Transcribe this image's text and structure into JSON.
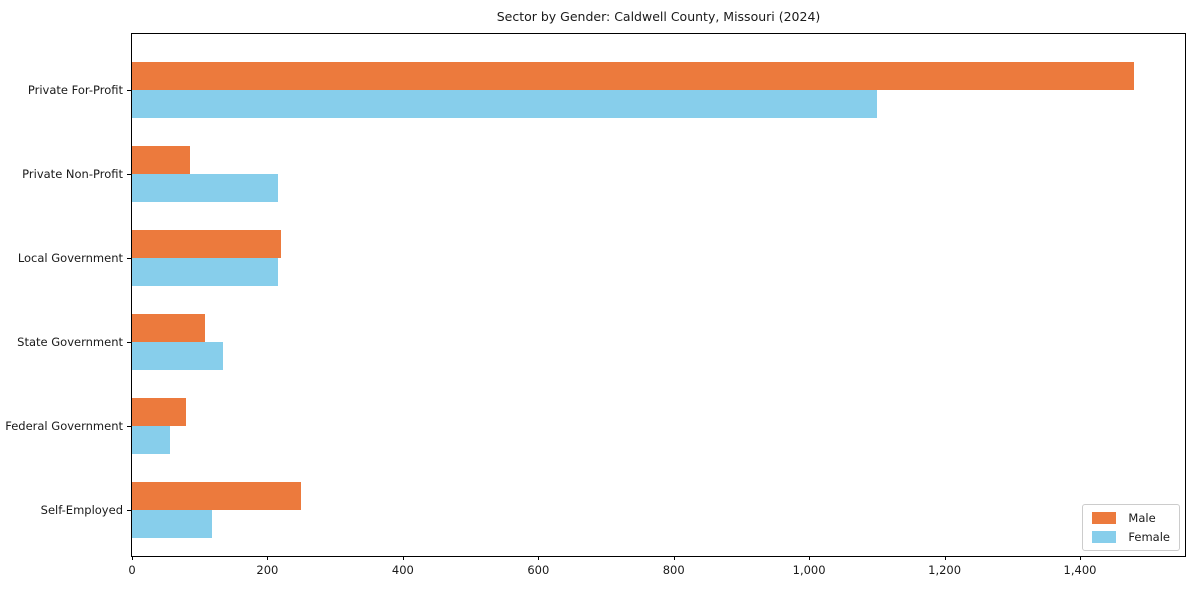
{
  "chart_data": {
    "type": "bar",
    "orientation": "horizontal",
    "title": "Sector by Gender: Caldwell County, Missouri (2024)",
    "categories": [
      "Private For-Profit",
      "Private Non-Profit",
      "Local Government",
      "State Government",
      "Federal Government",
      "Self-Employed"
    ],
    "series": [
      {
        "name": "Male",
        "color": "#EC7A3D",
        "values": [
          1480,
          85,
          220,
          107,
          80,
          250
        ]
      },
      {
        "name": "Female",
        "color": "#87CEEB",
        "values": [
          1100,
          215,
          215,
          135,
          56,
          118
        ]
      }
    ],
    "xlabel": "",
    "ylabel": "",
    "xlim": [
      0,
      1558
    ],
    "xticks": {
      "values": [
        0,
        200,
        400,
        600,
        800,
        1000,
        1200,
        1400
      ],
      "labels": [
        "0",
        "200",
        "400",
        "600",
        "800",
        "1,000",
        "1,200",
        "1,400"
      ]
    },
    "legend": {
      "position": "lower right",
      "labels": [
        "Male",
        "Female"
      ]
    },
    "grid": false,
    "frame": true,
    "background": "#ffffff"
  }
}
